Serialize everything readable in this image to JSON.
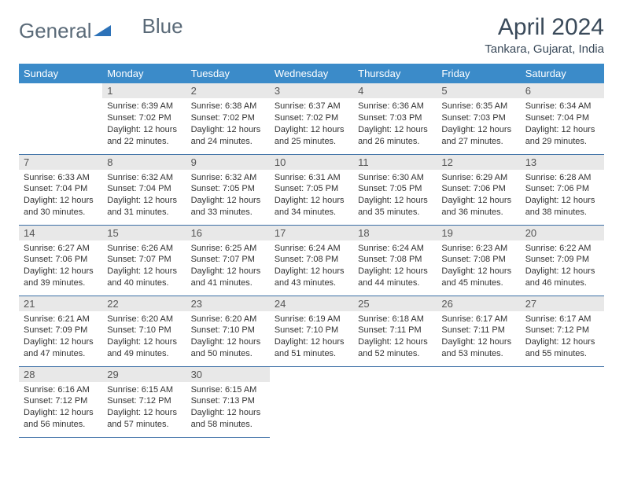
{
  "brand": {
    "text_part1": "General",
    "text_part2": "Blue",
    "text_color": "#5a6a78",
    "icon_color": "#2d72b8"
  },
  "title": {
    "month": "April 2024",
    "location": "Tankara, Gujarat, India"
  },
  "style": {
    "header_bg": "#3b8bc9",
    "header_fg": "#ffffff",
    "daynum_bg": "#e8e8e8",
    "row_border": "#3b6ea5"
  },
  "weekdays": [
    "Sunday",
    "Monday",
    "Tuesday",
    "Wednesday",
    "Thursday",
    "Friday",
    "Saturday"
  ],
  "weeks": [
    [
      {
        "n": "",
        "lines": []
      },
      {
        "n": "1",
        "lines": [
          "Sunrise: 6:39 AM",
          "Sunset: 7:02 PM",
          "Daylight: 12 hours and 22 minutes."
        ]
      },
      {
        "n": "2",
        "lines": [
          "Sunrise: 6:38 AM",
          "Sunset: 7:02 PM",
          "Daylight: 12 hours and 24 minutes."
        ]
      },
      {
        "n": "3",
        "lines": [
          "Sunrise: 6:37 AM",
          "Sunset: 7:02 PM",
          "Daylight: 12 hours and 25 minutes."
        ]
      },
      {
        "n": "4",
        "lines": [
          "Sunrise: 6:36 AM",
          "Sunset: 7:03 PM",
          "Daylight: 12 hours and 26 minutes."
        ]
      },
      {
        "n": "5",
        "lines": [
          "Sunrise: 6:35 AM",
          "Sunset: 7:03 PM",
          "Daylight: 12 hours and 27 minutes."
        ]
      },
      {
        "n": "6",
        "lines": [
          "Sunrise: 6:34 AM",
          "Sunset: 7:04 PM",
          "Daylight: 12 hours and 29 minutes."
        ]
      }
    ],
    [
      {
        "n": "7",
        "lines": [
          "Sunrise: 6:33 AM",
          "Sunset: 7:04 PM",
          "Daylight: 12 hours and 30 minutes."
        ]
      },
      {
        "n": "8",
        "lines": [
          "Sunrise: 6:32 AM",
          "Sunset: 7:04 PM",
          "Daylight: 12 hours and 31 minutes."
        ]
      },
      {
        "n": "9",
        "lines": [
          "Sunrise: 6:32 AM",
          "Sunset: 7:05 PM",
          "Daylight: 12 hours and 33 minutes."
        ]
      },
      {
        "n": "10",
        "lines": [
          "Sunrise: 6:31 AM",
          "Sunset: 7:05 PM",
          "Daylight: 12 hours and 34 minutes."
        ]
      },
      {
        "n": "11",
        "lines": [
          "Sunrise: 6:30 AM",
          "Sunset: 7:05 PM",
          "Daylight: 12 hours and 35 minutes."
        ]
      },
      {
        "n": "12",
        "lines": [
          "Sunrise: 6:29 AM",
          "Sunset: 7:06 PM",
          "Daylight: 12 hours and 36 minutes."
        ]
      },
      {
        "n": "13",
        "lines": [
          "Sunrise: 6:28 AM",
          "Sunset: 7:06 PM",
          "Daylight: 12 hours and 38 minutes."
        ]
      }
    ],
    [
      {
        "n": "14",
        "lines": [
          "Sunrise: 6:27 AM",
          "Sunset: 7:06 PM",
          "Daylight: 12 hours and 39 minutes."
        ]
      },
      {
        "n": "15",
        "lines": [
          "Sunrise: 6:26 AM",
          "Sunset: 7:07 PM",
          "Daylight: 12 hours and 40 minutes."
        ]
      },
      {
        "n": "16",
        "lines": [
          "Sunrise: 6:25 AM",
          "Sunset: 7:07 PM",
          "Daylight: 12 hours and 41 minutes."
        ]
      },
      {
        "n": "17",
        "lines": [
          "Sunrise: 6:24 AM",
          "Sunset: 7:08 PM",
          "Daylight: 12 hours and 43 minutes."
        ]
      },
      {
        "n": "18",
        "lines": [
          "Sunrise: 6:24 AM",
          "Sunset: 7:08 PM",
          "Daylight: 12 hours and 44 minutes."
        ]
      },
      {
        "n": "19",
        "lines": [
          "Sunrise: 6:23 AM",
          "Sunset: 7:08 PM",
          "Daylight: 12 hours and 45 minutes."
        ]
      },
      {
        "n": "20",
        "lines": [
          "Sunrise: 6:22 AM",
          "Sunset: 7:09 PM",
          "Daylight: 12 hours and 46 minutes."
        ]
      }
    ],
    [
      {
        "n": "21",
        "lines": [
          "Sunrise: 6:21 AM",
          "Sunset: 7:09 PM",
          "Daylight: 12 hours and 47 minutes."
        ]
      },
      {
        "n": "22",
        "lines": [
          "Sunrise: 6:20 AM",
          "Sunset: 7:10 PM",
          "Daylight: 12 hours and 49 minutes."
        ]
      },
      {
        "n": "23",
        "lines": [
          "Sunrise: 6:20 AM",
          "Sunset: 7:10 PM",
          "Daylight: 12 hours and 50 minutes."
        ]
      },
      {
        "n": "24",
        "lines": [
          "Sunrise: 6:19 AM",
          "Sunset: 7:10 PM",
          "Daylight: 12 hours and 51 minutes."
        ]
      },
      {
        "n": "25",
        "lines": [
          "Sunrise: 6:18 AM",
          "Sunset: 7:11 PM",
          "Daylight: 12 hours and 52 minutes."
        ]
      },
      {
        "n": "26",
        "lines": [
          "Sunrise: 6:17 AM",
          "Sunset: 7:11 PM",
          "Daylight: 12 hours and 53 minutes."
        ]
      },
      {
        "n": "27",
        "lines": [
          "Sunrise: 6:17 AM",
          "Sunset: 7:12 PM",
          "Daylight: 12 hours and 55 minutes."
        ]
      }
    ],
    [
      {
        "n": "28",
        "lines": [
          "Sunrise: 6:16 AM",
          "Sunset: 7:12 PM",
          "Daylight: 12 hours and 56 minutes."
        ]
      },
      {
        "n": "29",
        "lines": [
          "Sunrise: 6:15 AM",
          "Sunset: 7:12 PM",
          "Daylight: 12 hours and 57 minutes."
        ]
      },
      {
        "n": "30",
        "lines": [
          "Sunrise: 6:15 AM",
          "Sunset: 7:13 PM",
          "Daylight: 12 hours and 58 minutes."
        ]
      },
      {
        "n": "",
        "lines": []
      },
      {
        "n": "",
        "lines": []
      },
      {
        "n": "",
        "lines": []
      },
      {
        "n": "",
        "lines": []
      }
    ]
  ]
}
